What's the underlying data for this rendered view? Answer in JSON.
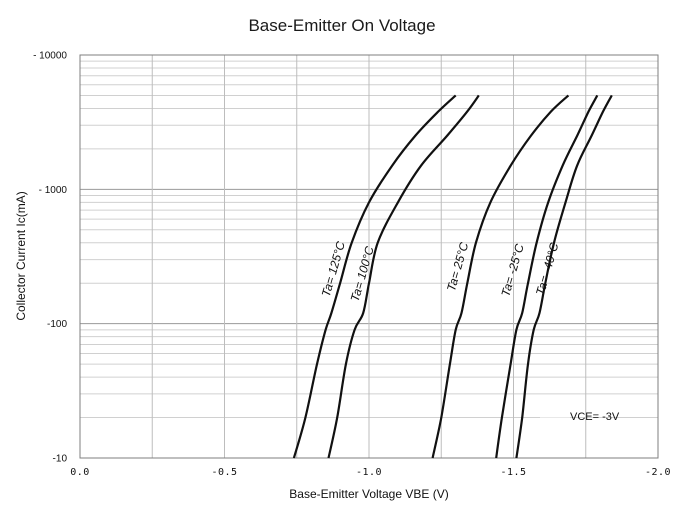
{
  "chart_data": {
    "type": "line",
    "title": "Base-Emitter On Voltage",
    "xlabel": "Base-Emitter Voltage  VBE (V)",
    "ylabel": "Collector Current  Ic(mA)",
    "x_scale": "linear",
    "y_scale": "log",
    "xlim": [
      0.0,
      -2.0
    ],
    "ylim": [
      10,
      10000
    ],
    "x_ticks": [
      0.0,
      -0.5,
      -1.0,
      -1.5,
      -2.0
    ],
    "x_tick_labels": [
      "0.0",
      "-0.5",
      "-1.0",
      "-1.5",
      "-2.0"
    ],
    "y_ticks": [
      10,
      100,
      1000,
      10000
    ],
    "y_tick_labels": [
      "-10",
      "-100",
      "- 1000",
      "- 10000"
    ],
    "grid": true,
    "annotation": "VCE= -3V",
    "series": [
      {
        "name": "Ta= 125°C",
        "x": [
          -0.74,
          -0.78,
          -0.82,
          -0.85,
          -0.87,
          -0.9,
          -0.94,
          -1.0,
          -1.08,
          -1.16,
          -1.24,
          -1.3
        ],
        "y": [
          10,
          20,
          50,
          90,
          120,
          200,
          400,
          800,
          1500,
          2500,
          3800,
          5000
        ]
      },
      {
        "name": "Ta= 100°C",
        "x": [
          -0.86,
          -0.89,
          -0.92,
          -0.95,
          -0.98,
          -1.0,
          -1.03,
          -1.1,
          -1.18,
          -1.27,
          -1.34,
          -1.38
        ],
        "y": [
          10,
          20,
          50,
          90,
          120,
          200,
          400,
          800,
          1500,
          2500,
          3800,
          5000
        ]
      },
      {
        "name": "Ta= 25°C",
        "x": [
          -1.22,
          -1.25,
          -1.28,
          -1.3,
          -1.32,
          -1.34,
          -1.37,
          -1.42,
          -1.49,
          -1.56,
          -1.63,
          -1.69
        ],
        "y": [
          10,
          20,
          50,
          90,
          120,
          200,
          400,
          800,
          1500,
          2500,
          3800,
          5000
        ]
      },
      {
        "name": "Ta= -25°C",
        "x": [
          -1.44,
          -1.46,
          -1.49,
          -1.51,
          -1.53,
          -1.55,
          -1.58,
          -1.62,
          -1.67,
          -1.72,
          -1.76,
          -1.79
        ],
        "y": [
          10,
          20,
          50,
          90,
          120,
          200,
          400,
          800,
          1500,
          2500,
          3800,
          5000
        ]
      },
      {
        "name": "Ta= -40°C",
        "x": [
          -1.51,
          -1.53,
          -1.55,
          -1.57,
          -1.59,
          -1.61,
          -1.64,
          -1.68,
          -1.72,
          -1.77,
          -1.81,
          -1.84
        ],
        "y": [
          10,
          20,
          50,
          90,
          120,
          200,
          400,
          800,
          1500,
          2500,
          3800,
          5000
        ]
      }
    ]
  }
}
